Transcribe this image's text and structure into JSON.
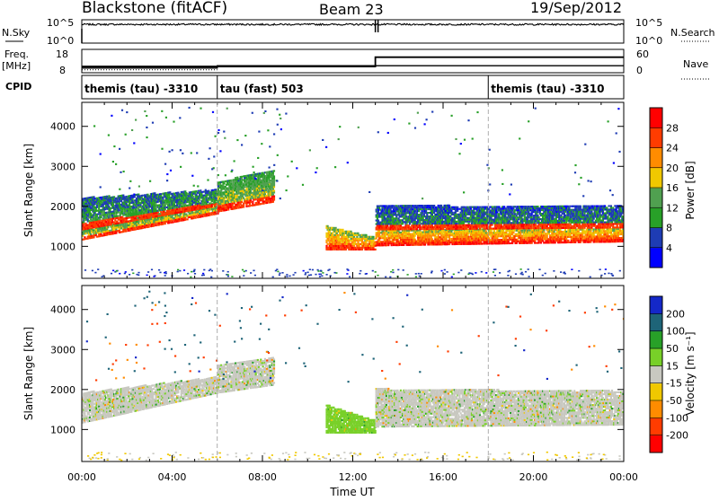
{
  "header": {
    "station": "Blackstone (fitACF)",
    "beam": "Beam 23",
    "date": "19/Sep/2012"
  },
  "labels": {
    "nsky": "N.Sky",
    "nsearch": "N.Search",
    "freq": "Freq.",
    "freq_unit": "[MHz]",
    "nave": "Nave",
    "cpid": "CPID"
  },
  "noise_ticks_left": [
    "10^5",
    "10^0"
  ],
  "noise_ticks_right": [
    "10^5",
    "10^0"
  ],
  "freq_ticks": [
    "18",
    "8"
  ],
  "nave_ticks": [
    "60",
    "0"
  ],
  "cpid_segments": [
    {
      "label": "themis (tau) -3310",
      "start_hour": 0,
      "end_hour": 6
    },
    {
      "label": "tau (fast) 503",
      "start_hour": 6,
      "end_hour": 18
    },
    {
      "label": "themis (tau) -3310",
      "start_hour": 18,
      "end_hour": 24
    }
  ],
  "power_colorbar": {
    "label": "Power [dB]",
    "ticks": [
      "4",
      "8",
      "12",
      "16",
      "20",
      "24",
      "28"
    ],
    "colors": [
      "#0000ff",
      "#1e3cb4",
      "#28a028",
      "#50a050",
      "#f0c800",
      "#ff8c00",
      "#ff3c00",
      "#ff0000"
    ]
  },
  "velocity_colorbar": {
    "label": "Velocity [m s⁻¹]",
    "ticks": [
      "200",
      "100",
      "50",
      "15",
      "-15",
      "-50",
      "-100",
      "-200"
    ],
    "colors": [
      "#1428c8",
      "#1e6478",
      "#28a028",
      "#78d028",
      "#c8c8c0",
      "#f0c800",
      "#ff8c00",
      "#ff3c00",
      "#ff0000"
    ]
  },
  "chart_data": [
    {
      "type": "line",
      "series": [
        {
          "name": "N.Sky",
          "x": [
            0,
            4,
            8,
            12,
            16,
            20,
            24
          ],
          "y": [
            10000,
            10000,
            10000,
            10000,
            10000,
            10000,
            10000
          ]
        }
      ],
      "ylabel": "N.Sky",
      "yscale": "log",
      "ylim": [
        1,
        100000
      ],
      "xlim": [
        0,
        24
      ]
    },
    {
      "type": "line",
      "series": [
        {
          "name": "Freq.",
          "x": [
            0,
            6,
            6,
            24
          ],
          "y": [
            10,
            10,
            11,
            11
          ]
        },
        {
          "name": "Nave",
          "x": [
            0,
            13,
            13,
            24
          ],
          "y": [
            16,
            16,
            40,
            40
          ]
        }
      ],
      "ylabel": "Freq. [MHz]",
      "ylim": [
        8,
        18
      ],
      "y2lim": [
        0,
        60
      ],
      "xlim": [
        0,
        24
      ]
    },
    {
      "type": "heatmap",
      "title": "",
      "xlabel": "Time UT",
      "ylabel": "Slant Range [km]",
      "xlim": [
        0,
        24
      ],
      "ylim": [
        200,
        4600
      ],
      "x_ticks": [
        "00:00",
        "04:00",
        "08:00",
        "12:00",
        "16:00",
        "20:00",
        "00:00"
      ],
      "y_ticks": [
        1000,
        2000,
        3000,
        4000
      ],
      "colorbar": "Power [dB]",
      "bands": [
        {
          "t0": 0,
          "t1": 6,
          "r0": 1150,
          "r1": 1400,
          "r0end": 1800,
          "r1end": 2100,
          "value": 20
        },
        {
          "t0": 0,
          "t1": 6,
          "r0": 1400,
          "r1": 2200,
          "r0end": 2000,
          "r1end": 2400,
          "value": 12
        },
        {
          "t0": 6,
          "t1": 8.5,
          "r0": 1850,
          "r1": 2600,
          "r0end": 2100,
          "r1end": 2900,
          "value": 18
        },
        {
          "t0": 10.8,
          "t1": 13,
          "r0": 900,
          "r1": 1500,
          "r0end": 900,
          "r1end": 1200,
          "value": 26
        },
        {
          "t0": 13,
          "t1": 24,
          "r0": 1000,
          "r1": 1400,
          "r0end": 1100,
          "r1end": 1450,
          "value": 28
        },
        {
          "t0": 13,
          "t1": 24,
          "r0": 1400,
          "r1": 2000,
          "r0end": 1450,
          "r1end": 2000,
          "value": 10
        }
      ]
    },
    {
      "type": "heatmap",
      "title": "",
      "xlabel": "Time UT",
      "ylabel": "Slant Range [km]",
      "xlim": [
        0,
        24
      ],
      "ylim": [
        200,
        4600
      ],
      "x_ticks": [
        "00:00",
        "04:00",
        "08:00",
        "12:00",
        "16:00",
        "20:00",
        "00:00"
      ],
      "y_ticks": [
        1000,
        2000,
        3000,
        4000
      ],
      "colorbar": "Velocity [m s⁻¹]",
      "bands": [
        {
          "t0": 0,
          "t1": 6,
          "r0": 1150,
          "r1": 1900,
          "r0end": 1900,
          "r1end": 2300,
          "value": 0
        },
        {
          "t0": 6,
          "t1": 8.5,
          "r0": 1900,
          "r1": 2600,
          "r0end": 2100,
          "r1end": 2800,
          "value": 0
        },
        {
          "t0": 10.8,
          "t1": 13,
          "r0": 900,
          "r1": 1600,
          "r0end": 900,
          "r1end": 1200,
          "value": 30
        },
        {
          "t0": 13,
          "t1": 24,
          "r0": 1050,
          "r1": 2000,
          "r0end": 1100,
          "r1end": 1950,
          "value": 0
        }
      ]
    }
  ]
}
